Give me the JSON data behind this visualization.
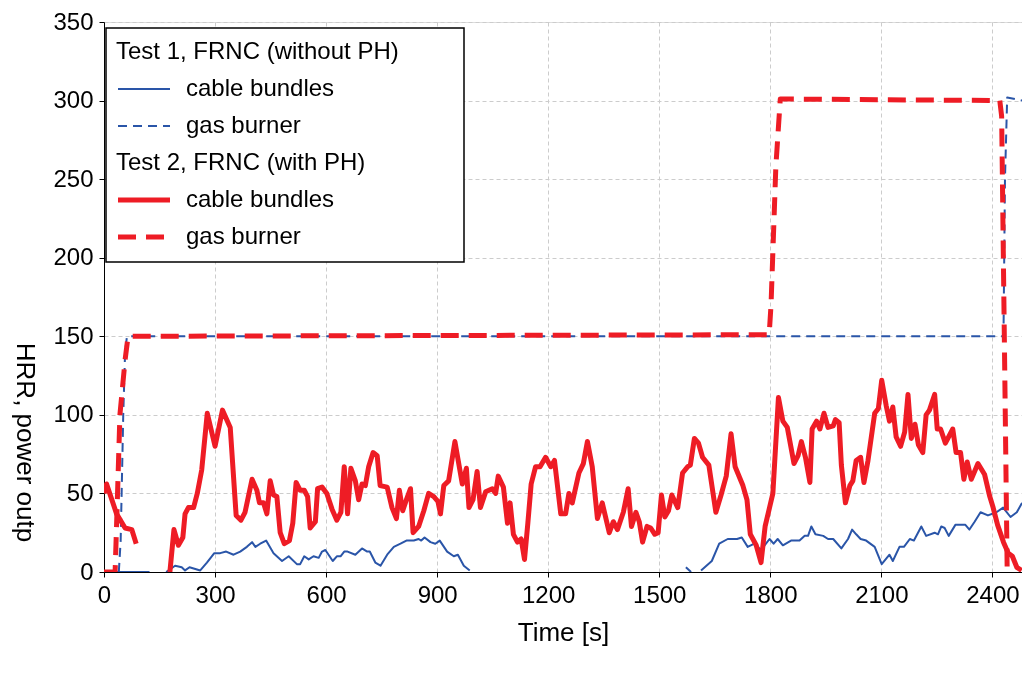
{
  "chart_data": {
    "type": "line",
    "xlabel": "Time [s]",
    "ylabel": "HRR, power outp",
    "xlim": [
      0,
      2480
    ],
    "ylim": [
      0,
      350
    ],
    "xticks": [
      0,
      300,
      600,
      900,
      1200,
      1500,
      1800,
      2100,
      2400
    ],
    "yticks": [
      0,
      50,
      100,
      150,
      200,
      250,
      300,
      350
    ],
    "grid": true,
    "legend": "top left",
    "annotations": [
      "Test 1, FRNC (without PH)",
      "Test 2, FRNC (with PH)"
    ],
    "series": [
      {
        "name": "cable bundles",
        "color": "#2a55a8",
        "line_style": "solid",
        "x": [
          0,
          123,
          124,
          168,
          192,
          210,
          219,
          231,
          260,
          278,
          298,
          314,
          330,
          350,
          368,
          386,
          400,
          409,
          422,
          438,
          458,
          481,
          499,
          521,
          530,
          541,
          553,
          566,
          580,
          589,
          598,
          618,
          629,
          639,
          649,
          658,
          679,
          697,
          711,
          718,
          733,
          747,
          765,
          783,
          801,
          817,
          837,
          850,
          857,
          866,
          882,
          895,
          907,
          927,
          945,
          956,
          972,
          988,
          1000,
          1572,
          1586,
          1600,
          1613,
          1642,
          1662,
          1685,
          1710,
          1723,
          1739,
          1757,
          1775,
          1798,
          1809,
          1820,
          1834,
          1856,
          1879,
          1893,
          1902,
          1911,
          1922,
          1943,
          1956,
          1970,
          1992,
          2010,
          2021,
          2032,
          2044,
          2059,
          2082,
          2101,
          2122,
          2131,
          2149,
          2161,
          2177,
          2188,
          2208,
          2221,
          2244,
          2253,
          2262,
          2271,
          2282,
          2300,
          2311,
          2327,
          2338,
          2352,
          2368,
          2388,
          2411,
          2429,
          2449,
          2466,
          2480
        ],
        "values": [
          0,
          0,
          null,
          0,
          4,
          3,
          1,
          3,
          1,
          6,
          12,
          12,
          13,
          11,
          13,
          16,
          19,
          16,
          18,
          20,
          12,
          7,
          10,
          5,
          5,
          10,
          8,
          10,
          9,
          13,
          14,
          7,
          10,
          10,
          13,
          13,
          11,
          15,
          13,
          13,
          6,
          4,
          11,
          16,
          18,
          20,
          20,
          21,
          20,
          22,
          19,
          18,
          20,
          13,
          10,
          11,
          4,
          1,
          null,
          3,
          0,
          null,
          1,
          7,
          18,
          21,
          21,
          22,
          16,
          18,
          14,
          21,
          18,
          21,
          17,
          20,
          20,
          23,
          23,
          29,
          24,
          23,
          21,
          21,
          15,
          21,
          27,
          24,
          21,
          20,
          16,
          5,
          11,
          7,
          16,
          16,
          21,
          20,
          29,
          23,
          25,
          24,
          29,
          28,
          23,
          30,
          30,
          30,
          27,
          32,
          38,
          36,
          38,
          41,
          35,
          38,
          44
        ]
      },
      {
        "name": "gas burner",
        "color": "#2a55a8",
        "line_style": "dashed",
        "x": [
          0,
          40,
          45,
          52,
          57,
          62,
          2430,
          2434,
          2440,
          2480
        ],
        "values": [
          0,
          0,
          20,
          100,
          140,
          150,
          150,
          250,
          302,
          300
        ]
      },
      {
        "name": "cable bundles",
        "color": "#ee1c25",
        "line_style": "solid",
        "x": [
          0,
          7,
          34,
          57,
          75,
          87,
          100,
          178,
          189,
          201,
          213,
          219,
          228,
          242,
          252,
          264,
          279,
          300,
          320,
          341,
          357,
          370,
          381,
          400,
          413,
          420,
          431,
          440,
          449,
          458,
          467,
          476,
          487,
          501,
          510,
          519,
          530,
          541,
          550,
          557,
          571,
          577,
          589,
          602,
          616,
          629,
          640,
          649,
          658,
          667,
          679,
          688,
          697,
          706,
          715,
          727,
          738,
          746,
          765,
          778,
          790,
          798,
          807,
          817,
          828,
          835,
          850,
          864,
          877,
          891,
          902,
          909,
          918,
          931,
          948,
          968,
          979,
          986,
          997,
          1008,
          1017,
          1031,
          1049,
          1058,
          1065,
          1079,
          1090,
          1097,
          1106,
          1117,
          1127,
          1136,
          1145,
          1154,
          1166,
          1178,
          1193,
          1207,
          1217,
          1234,
          1247,
          1256,
          1265,
          1283,
          1295,
          1306,
          1319,
          1333,
          1346,
          1365,
          1376,
          1387,
          1403,
          1416,
          1425,
          1437,
          1446,
          1455,
          1467,
          1477,
          1488,
          1497,
          1506,
          1515,
          1525,
          1534,
          1550,
          1563,
          1577,
          1584,
          1595,
          1606,
          1617,
          1634,
          1653,
          1667,
          1681,
          1694,
          1705,
          1726,
          1737,
          1746,
          1762,
          1775,
          1786,
          1807,
          1822,
          1834,
          1846,
          1864,
          1875,
          1884,
          1895,
          1907,
          1913,
          1925,
          1934,
          1945,
          1956,
          1970,
          1976,
          1986,
          1992,
          2003,
          2015,
          2023,
          2032,
          2044,
          2053,
          2064,
          2082,
          2092,
          2101,
          2113,
          2122,
          2131,
          2140,
          2152,
          2163,
          2172,
          2181,
          2191,
          2200,
          2212,
          2221,
          2230,
          2244,
          2251,
          2260,
          2273,
          2293,
          2302,
          2314,
          2323,
          2332,
          2343,
          2361,
          2379,
          2393,
          2402,
          2414,
          2430,
          2443,
          2454,
          2466,
          2479
        ],
        "values": [
          50,
          56,
          37,
          28,
          27,
          18,
          null,
          0,
          27,
          17,
          22,
          37,
          41,
          41,
          50,
          65,
          101,
          80,
          103,
          92,
          36,
          33,
          38,
          59,
          52,
          44,
          44,
          37,
          58,
          49,
          48,
          25,
          18,
          20,
          31,
          57,
          52,
          52,
          48,
          28,
          32,
          53,
          54,
          50,
          40,
          33,
          38,
          67,
          37,
          66,
          58,
          46,
          56,
          55,
          67,
          76,
          74,
          55,
          54,
          41,
          34,
          52,
          39,
          46,
          53,
          25,
          29,
          39,
          50,
          48,
          45,
          37,
          55,
          58,
          83,
          56,
          66,
          41,
          46,
          64,
          41,
          51,
          53,
          50,
          61,
          54,
          31,
          44,
          24,
          19,
          21,
          8,
          31,
          56,
          67,
          67,
          73,
          67,
          71,
          37,
          37,
          50,
          44,
          63,
          69,
          83,
          67,
          34,
          44,
          25,
          32,
          27,
          38,
          53,
          29,
          38,
          32,
          19,
          29,
          28,
          24,
          25,
          49,
          35,
          39,
          49,
          41,
          63,
          67,
          68,
          85,
          82,
          73,
          68,
          38,
          49,
          61,
          88,
          67,
          55,
          46,
          24,
          17,
          6,
          29,
          50,
          111,
          96,
          92,
          69,
          74,
          83,
          73,
          57,
          91,
          96,
          91,
          101,
          92,
          93,
          97,
          95,
          68,
          44,
          55,
          58,
          71,
          73,
          57,
          71,
          101,
          104,
          122,
          106,
          96,
          105,
          86,
          80,
          89,
          113,
          85,
          94,
          81,
          76,
          100,
          103,
          113,
          91,
          91,
          82,
          91,
          76,
          76,
          59,
          70,
          59,
          69,
          62,
          48,
          41,
          30,
          19,
          12,
          10,
          3,
          1
        ]
      },
      {
        "name": "gas burner",
        "color": "#ee1c25",
        "line_style": "dashed",
        "x": [
          0,
          30,
          34,
          43,
          57,
          65,
          1797,
          1802,
          1815,
          1827,
          2420,
          2425,
          2440
        ],
        "values": [
          0,
          0,
          30,
          100,
          135,
          150,
          151,
          170,
          258,
          301,
          300,
          290,
          0
        ]
      }
    ]
  }
}
